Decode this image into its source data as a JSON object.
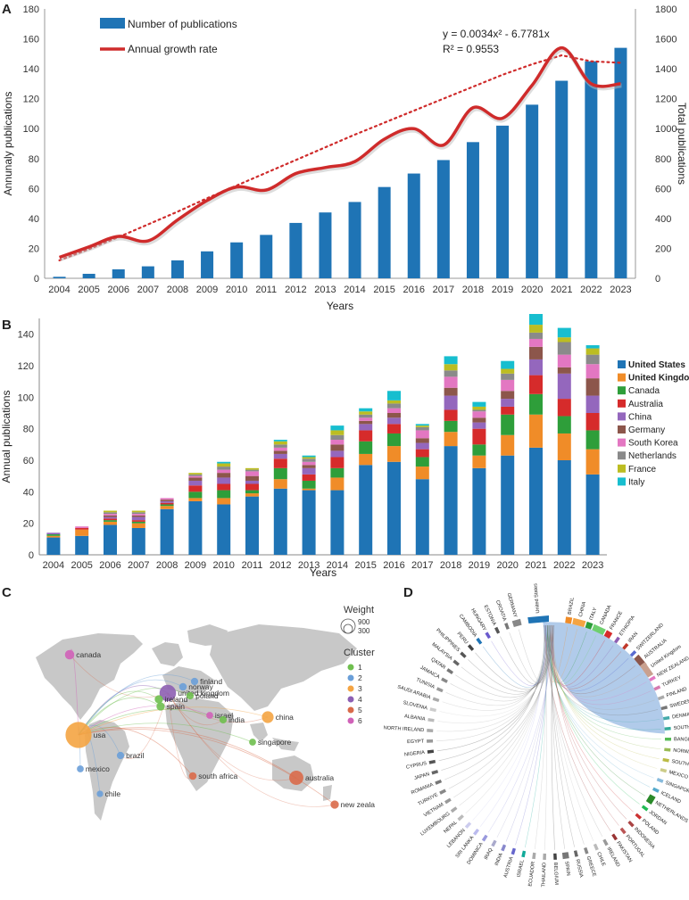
{
  "panels": {
    "a": "A",
    "b": "B",
    "c": "C",
    "d": "D"
  },
  "colors": {
    "bar_blue": "#1f74b5",
    "growth_red": "#cf2b2b",
    "map_land": "#c8c8c8",
    "ribbon_light_blue": "#a9c5e8"
  },
  "chart_data": [
    {
      "type": "bar",
      "title": "",
      "categories": [
        "2004",
        "2005",
        "2006",
        "2007",
        "2008",
        "2009",
        "2010",
        "2011",
        "2012",
        "2013",
        "2014",
        "2015",
        "2016",
        "2017",
        "2018",
        "2019",
        "2020",
        "2021",
        "2022",
        "2023"
      ],
      "series": [
        {
          "name": "Number of publications",
          "axis": "left",
          "values": [
            1,
            3,
            6,
            8,
            12,
            18,
            24,
            29,
            37,
            44,
            51,
            61,
            70,
            79,
            91,
            102,
            116,
            132,
            145,
            154
          ]
        },
        {
          "name": "Annual growth rate",
          "type": "line",
          "axis": "right",
          "values": [
            140,
            210,
            280,
            250,
            390,
            520,
            610,
            590,
            700,
            740,
            780,
            930,
            1000,
            890,
            1140,
            1070,
            1290,
            1540,
            1300,
            1300
          ]
        },
        {
          "name": "trend",
          "type": "dotted-line",
          "axis": "right",
          "values": [
            120,
            195,
            275,
            360,
            445,
            535,
            620,
            705,
            790,
            875,
            960,
            1040,
            1120,
            1200,
            1280,
            1360,
            1430,
            1490,
            1450,
            1440
          ]
        }
      ],
      "xlabel": "Years",
      "ylabel": "Annunaly publications",
      "y2label": "Total publications",
      "ylim": [
        0,
        180
      ],
      "y2lim": [
        0,
        1800
      ],
      "yticks": [
        "0",
        "20",
        "40",
        "60",
        "80",
        "100",
        "120",
        "140",
        "160",
        "180"
      ],
      "y2ticks": [
        "0",
        "200",
        "400",
        "600",
        "800",
        "1000",
        "1200",
        "1400",
        "1600",
        "1800"
      ],
      "legend": [
        "Number of publications",
        "Annual growth rate"
      ],
      "equation": "y = 0.0034x² - 6.7781x",
      "r_squared": "R² = 0.9553"
    },
    {
      "type": "bar",
      "stacked": true,
      "categories": [
        "2004",
        "2005",
        "2006",
        "2007",
        "2008",
        "2009",
        "2010",
        "2011",
        "2012",
        "2013",
        "2014",
        "2015",
        "2016",
        "2017",
        "2018",
        "2019",
        "2020",
        "2021",
        "2022",
        "2023"
      ],
      "series": [
        {
          "name": "United States",
          "color": "#1f74b5",
          "values": [
            11,
            12,
            19,
            17,
            29,
            34,
            32,
            37,
            42,
            41,
            41,
            57,
            59,
            48,
            69,
            55,
            63,
            68,
            60,
            51
          ]
        },
        {
          "name": "United Kingdom",
          "color": "#f08c28",
          "values": [
            1,
            4,
            2,
            3,
            2,
            2,
            4,
            2,
            6,
            1,
            8,
            7,
            10,
            8,
            9,
            8,
            13,
            21,
            17,
            16
          ]
        },
        {
          "name": "Canada",
          "color": "#2e9e3a",
          "values": [
            1,
            0,
            1,
            1,
            1,
            4,
            5,
            2,
            7,
            5,
            6,
            8,
            8,
            6,
            7,
            7,
            13,
            13,
            11,
            12
          ]
        },
        {
          "name": "Australia",
          "color": "#d62b2b",
          "values": [
            0,
            1,
            1,
            1,
            1,
            4,
            4,
            4,
            6,
            4,
            7,
            7,
            6,
            5,
            7,
            10,
            5,
            12,
            11,
            11
          ]
        },
        {
          "name": "China",
          "color": "#9467bd",
          "values": [
            1,
            0,
            1,
            2,
            1,
            3,
            4,
            2,
            3,
            4,
            4,
            4,
            4,
            4,
            9,
            4,
            5,
            10,
            16,
            11
          ]
        },
        {
          "name": "Germany",
          "color": "#8c564b",
          "values": [
            0,
            0,
            1,
            1,
            1,
            2,
            3,
            3,
            2,
            2,
            4,
            2,
            3,
            3,
            5,
            3,
            5,
            8,
            4,
            11
          ]
        },
        {
          "name": "South Korea",
          "color": "#e377c2",
          "values": [
            0,
            1,
            1,
            1,
            1,
            1,
            2,
            3,
            2,
            2,
            3,
            2,
            3,
            5,
            7,
            4,
            7,
            5,
            8,
            9
          ]
        },
        {
          "name": "Netherlands",
          "color": "#8a8a8a",
          "values": [
            0,
            0,
            1,
            1,
            0,
            1,
            2,
            1,
            2,
            2,
            3,
            2,
            3,
            2,
            4,
            1,
            4,
            4,
            8,
            6
          ]
        },
        {
          "name": "France",
          "color": "#bcbd22",
          "values": [
            0,
            0,
            1,
            1,
            0,
            1,
            2,
            1,
            2,
            1,
            3,
            2,
            2,
            1,
            4,
            2,
            3,
            5,
            3,
            4
          ]
        },
        {
          "name": "Italy",
          "color": "#17becf",
          "values": [
            0,
            0,
            0,
            0,
            0,
            0,
            1,
            0,
            1,
            1,
            3,
            2,
            6,
            1,
            5,
            3,
            5,
            7,
            6,
            2
          ]
        }
      ],
      "xlabel": "Years",
      "ylabel": "Annual publications",
      "ylim": [
        0,
        150
      ],
      "yticks": [
        "0",
        "20",
        "40",
        "60",
        "80",
        "100",
        "120",
        "140"
      ],
      "legend_position": "right"
    },
    {
      "type": "network-map",
      "legend_weight_title": "Weight",
      "legend_weight_values": [
        "900",
        "300"
      ],
      "legend_cluster_title": "Cluster",
      "clusters": [
        {
          "label": "1",
          "color": "#6fbf4f"
        },
        {
          "label": "2",
          "color": "#6a9fd8"
        },
        {
          "label": "3",
          "color": "#f4a443"
        },
        {
          "label": "4",
          "color": "#8d5fb3"
        },
        {
          "label": "5",
          "color": "#d96a4a"
        },
        {
          "label": "6",
          "color": "#d062b8"
        }
      ],
      "nodes": [
        {
          "label": "canada",
          "cluster": "6",
          "weight": 60
        },
        {
          "label": "usa",
          "cluster": "3",
          "weight": 900
        },
        {
          "label": "mexico",
          "cluster": "2",
          "weight": 20
        },
        {
          "label": "brazil",
          "cluster": "2",
          "weight": 25
        },
        {
          "label": "chile",
          "cluster": "2",
          "weight": 15
        },
        {
          "label": "united kingdom",
          "cluster": "4",
          "weight": 300
        },
        {
          "label": "ireland",
          "cluster": "1",
          "weight": 40
        },
        {
          "label": "norway",
          "cluster": "2",
          "weight": 30
        },
        {
          "label": "finland",
          "cluster": "2",
          "weight": 25
        },
        {
          "label": "poland",
          "cluster": "1",
          "weight": 25
        },
        {
          "label": "spain",
          "cluster": "1",
          "weight": 40
        },
        {
          "label": "israel",
          "cluster": "6",
          "weight": 20
        },
        {
          "label": "india",
          "cluster": "1",
          "weight": 25
        },
        {
          "label": "china",
          "cluster": "3",
          "weight": 120
        },
        {
          "label": "singapore",
          "cluster": "1",
          "weight": 20
        },
        {
          "label": "south africa",
          "cluster": "5",
          "weight": 30
        },
        {
          "label": "australia",
          "cluster": "5",
          "weight": 200
        },
        {
          "label": "new zealand",
          "cluster": "5",
          "weight": 40
        }
      ]
    },
    {
      "type": "chord",
      "countries": [
        "United States",
        "BRAZIL",
        "CHINA",
        "ITALY",
        "CANADA",
        "FRANCE",
        "ETHIOPIA",
        "IRAN",
        "SWITZERLAND",
        "AUSTRALIA",
        "United Kingdom",
        "NEW ZEALAND",
        "TURKEY",
        "FINLAND",
        "SWEDEN",
        "DENMARK",
        "SOUTH KOREA",
        "BANGLADESH",
        "NORWAY",
        "SOUTH AFRICA",
        "MEXICO",
        "SINGAPORE",
        "ICELAND",
        "NETHERLANDS",
        "JORDAN",
        "POLAND",
        "INDONESIA",
        "PORTUGAL",
        "PAKISTAN",
        "IRELAND",
        "CHILE",
        "GREECE",
        "RUSSIA",
        "SPAIN",
        "BELGIUM",
        "THAILAND",
        "ECUADOR",
        "ISRAEL",
        "AUSTRIA",
        "INDIA",
        "IRAQ",
        "DOMINICA",
        "SRI LANKA",
        "LEBANON",
        "NEPAL",
        "LUXEMBOURG",
        "VIETNAM",
        "TURKIYE",
        "ROMANIA",
        "JAPAN",
        "CYPRUS",
        "NIGERIA",
        "EGYPT",
        "NORTH IRELAND",
        "ALBANIA",
        "SLOVENIA",
        "SAUDI ARABIA",
        "TUNISIA",
        "JAMAICA",
        "QATAR",
        "MALAYSIA",
        "PHILIPPINES",
        "PERU",
        "CAMBODIA",
        "HUNGARY",
        "ESTONIA",
        "CROATIA",
        "GERMANY"
      ]
    }
  ]
}
